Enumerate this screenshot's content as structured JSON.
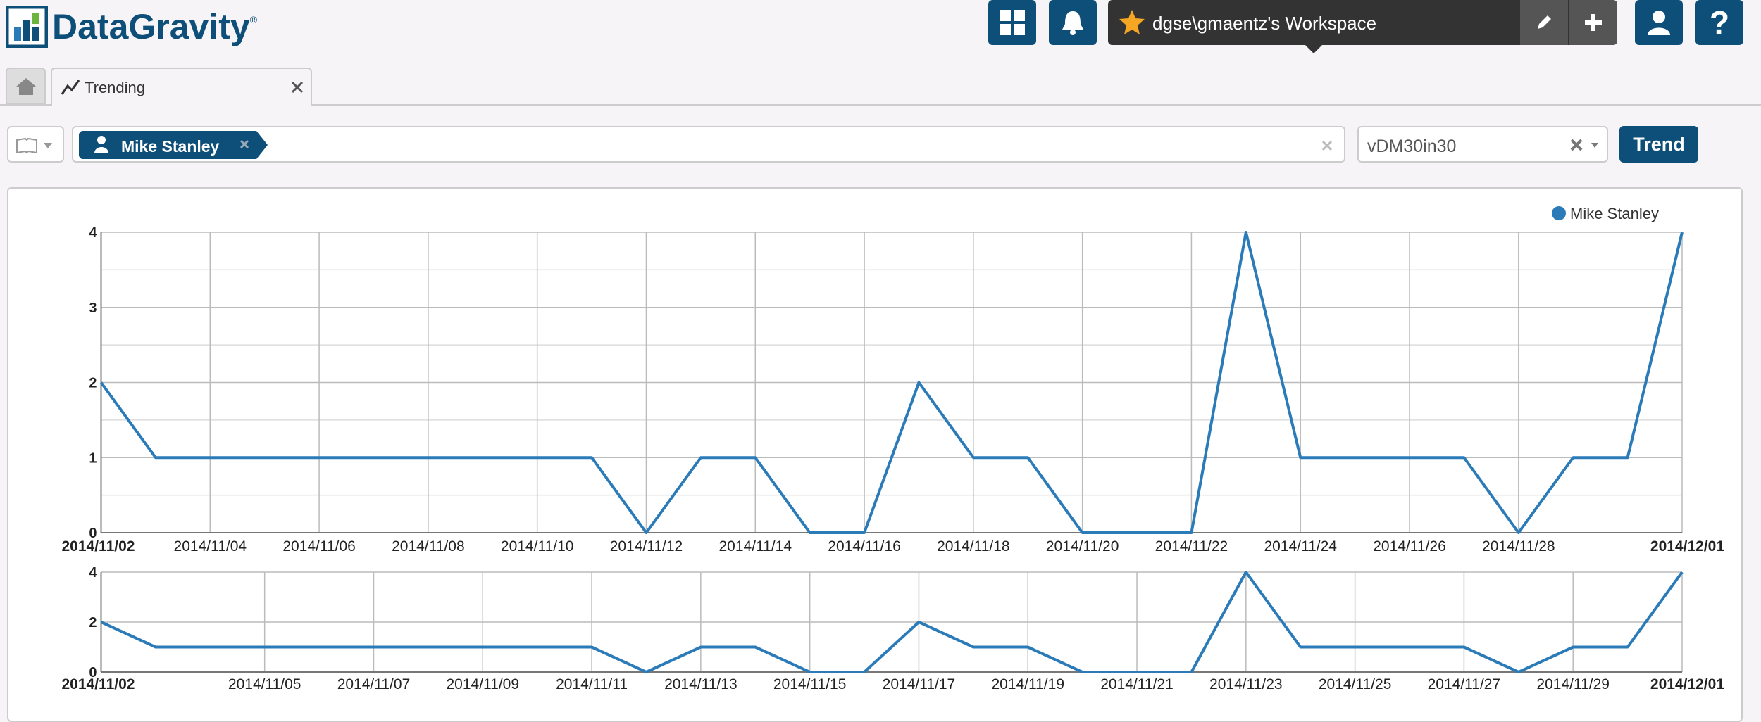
{
  "header": {
    "logo": "DataGravity",
    "logo_mark": "®",
    "workspace": "dgse\\gmaentz's Workspace"
  },
  "tabs": [
    "Trending"
  ],
  "filter": {
    "pill": "Mike Stanley",
    "select": "vDM30in30",
    "button": "Trend"
  },
  "chart_data": [
    {
      "type": "line",
      "x": [
        "2014/11/02",
        "2014/11/03",
        "2014/11/04",
        "2014/11/05",
        "2014/11/06",
        "2014/11/07",
        "2014/11/08",
        "2014/11/09",
        "2014/11/10",
        "2014/11/11",
        "2014/11/12",
        "2014/11/13",
        "2014/11/14",
        "2014/11/15",
        "2014/11/16",
        "2014/11/17",
        "2014/11/18",
        "2014/11/19",
        "2014/11/20",
        "2014/11/21",
        "2014/11/22",
        "2014/11/23",
        "2014/11/24",
        "2014/11/25",
        "2014/11/26",
        "2014/11/27",
        "2014/11/28",
        "2014/11/29",
        "2014/11/30",
        "2014/12/01"
      ],
      "series": [
        {
          "name": "Mike Stanley",
          "color": "#2b7bb9",
          "values": [
            2,
            1,
            1,
            1,
            1,
            1,
            1,
            1,
            1,
            1,
            0,
            1,
            1,
            0,
            0,
            2,
            1,
            1,
            0,
            0,
            0,
            4,
            1,
            1,
            1,
            1,
            0,
            1,
            1,
            4
          ]
        }
      ],
      "xlim": [
        "2014/11/02",
        "2014/12/01"
      ],
      "xticks": [
        "2014/11/02",
        "2014/11/04",
        "2014/11/06",
        "2014/11/08",
        "2014/11/10",
        "2014/11/12",
        "2014/11/14",
        "2014/11/16",
        "2014/11/18",
        "2014/11/20",
        "2014/11/22",
        "2014/11/24",
        "2014/11/26",
        "2014/11/28",
        "2014/12/01"
      ],
      "ylim": [
        0,
        4
      ],
      "yticks": [
        0,
        1,
        2,
        3,
        4
      ],
      "grid": true,
      "minor_grid": true,
      "legend": "top-right"
    },
    {
      "type": "line",
      "x": [
        "2014/11/02",
        "2014/11/03",
        "2014/11/04",
        "2014/11/05",
        "2014/11/06",
        "2014/11/07",
        "2014/11/08",
        "2014/11/09",
        "2014/11/10",
        "2014/11/11",
        "2014/11/12",
        "2014/11/13",
        "2014/11/14",
        "2014/11/15",
        "2014/11/16",
        "2014/11/17",
        "2014/11/18",
        "2014/11/19",
        "2014/11/20",
        "2014/11/21",
        "2014/11/22",
        "2014/11/23",
        "2014/11/24",
        "2014/11/25",
        "2014/11/26",
        "2014/11/27",
        "2014/11/28",
        "2014/11/29",
        "2014/11/30",
        "2014/12/01"
      ],
      "series": [
        {
          "color": "#2b7bb9",
          "values": [
            2,
            1,
            1,
            1,
            1,
            1,
            1,
            1,
            1,
            1,
            0,
            1,
            1,
            0,
            0,
            2,
            1,
            1,
            0,
            0,
            0,
            4,
            1,
            1,
            1,
            1,
            0,
            1,
            1,
            4
          ]
        }
      ],
      "xlim": [
        "2014/11/02",
        "2014/12/01"
      ],
      "xticks": [
        "2014/11/02",
        "2014/11/05",
        "2014/11/07",
        "2014/11/09",
        "2014/11/11",
        "2014/11/13",
        "2014/11/15",
        "2014/11/17",
        "2014/11/19",
        "2014/11/21",
        "2014/11/23",
        "2014/11/25",
        "2014/11/27",
        "2014/11/29",
        "2014/12/01"
      ],
      "ylim": [
        0,
        4
      ],
      "yticks": [
        0,
        2,
        4
      ],
      "grid": true,
      "minor_grid": false
    }
  ]
}
